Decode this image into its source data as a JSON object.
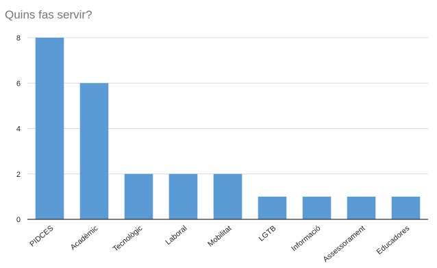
{
  "chart_data": {
    "type": "bar",
    "title": "Quins fas servir?",
    "xlabel": "",
    "ylabel": "",
    "categories": [
      "PIDCES",
      "Acadèmic",
      "Tecnològic",
      "Laboral",
      "Mobilitat",
      "LGTB",
      "Informació",
      "Assessorament",
      "Educadores"
    ],
    "values": [
      8,
      6,
      2,
      2,
      2,
      1,
      1,
      1,
      1
    ],
    "ylim": [
      0,
      8
    ],
    "yticks": [
      0,
      2,
      4,
      6,
      8
    ],
    "grid": true,
    "legend": "none",
    "bar_color": "#5b9bd5"
  }
}
